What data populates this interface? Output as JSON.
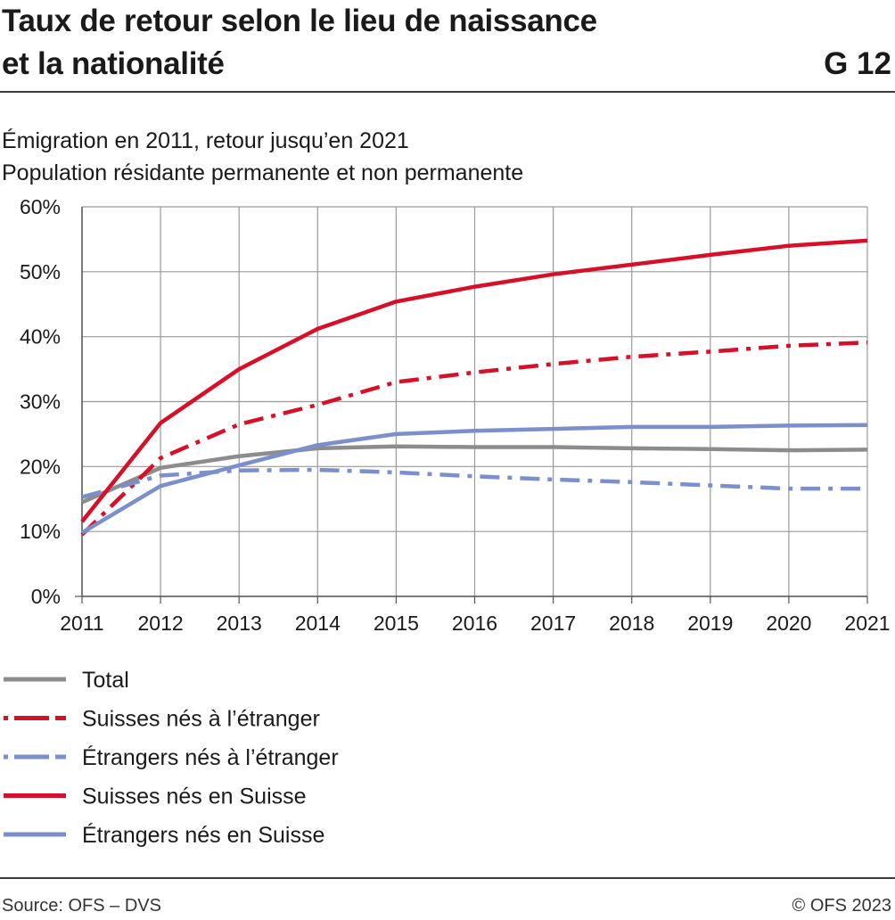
{
  "header": {
    "title_line1": "Taux de retour selon le lieu de naissance",
    "title_line2": "et la nationalité",
    "figure_number": "G 12"
  },
  "subtitle": {
    "line1": "Émigration en 2011, retour jusqu’en 2021",
    "line2": "Population résidante permanente et non permanente"
  },
  "footer": {
    "source": "Source: OFS – DVS",
    "copyright": "© OFS 2023"
  },
  "chart_data": {
    "type": "line",
    "x": [
      2011,
      2012,
      2013,
      2014,
      2015,
      2016,
      2017,
      2018,
      2019,
      2020,
      2021
    ],
    "ylim": [
      0,
      60
    ],
    "yticks": [
      0,
      10,
      20,
      30,
      40,
      50,
      60
    ],
    "ytick_labels": [
      "0%",
      "10%",
      "20%",
      "30%",
      "40%",
      "50%",
      "60%"
    ],
    "xtick_labels": [
      "2011",
      "2012",
      "2013",
      "2014",
      "2015",
      "2016",
      "2017",
      "2018",
      "2019",
      "2020",
      "2021"
    ],
    "grid": true,
    "legend_position": "bottom",
    "series": [
      {
        "name": "Total",
        "color": "#8c8c8c",
        "dash": "solid",
        "values": [
          14.5,
          19.8,
          21.6,
          22.8,
          23.1,
          23.0,
          23.0,
          22.8,
          22.7,
          22.5,
          22.6
        ]
      },
      {
        "name": "Suisses nés à l’étranger",
        "color": "#d7102a",
        "dash": "dashdot",
        "values": [
          9.5,
          21.3,
          26.5,
          29.5,
          33.0,
          34.5,
          35.8,
          36.9,
          37.7,
          38.6,
          39.1
        ]
      },
      {
        "name": "Étrangers nés à l’étranger",
        "color": "#7a8fcc",
        "dash": "dashdot",
        "values": [
          15.3,
          18.6,
          19.4,
          19.5,
          19.1,
          18.5,
          18.0,
          17.6,
          17.1,
          16.6,
          16.6
        ]
      },
      {
        "name": "Suisses nés en Suisse",
        "color": "#d7102a",
        "dash": "solid",
        "values": [
          11.5,
          26.7,
          35.0,
          41.2,
          45.4,
          47.7,
          49.6,
          51.1,
          52.6,
          54.0,
          54.8
        ]
      },
      {
        "name": "Étrangers nés en Suisse",
        "color": "#7a8fcc",
        "dash": "solid",
        "values": [
          9.8,
          17.0,
          20.2,
          23.3,
          25.0,
          25.5,
          25.8,
          26.1,
          26.1,
          26.3,
          26.4
        ]
      }
    ]
  }
}
